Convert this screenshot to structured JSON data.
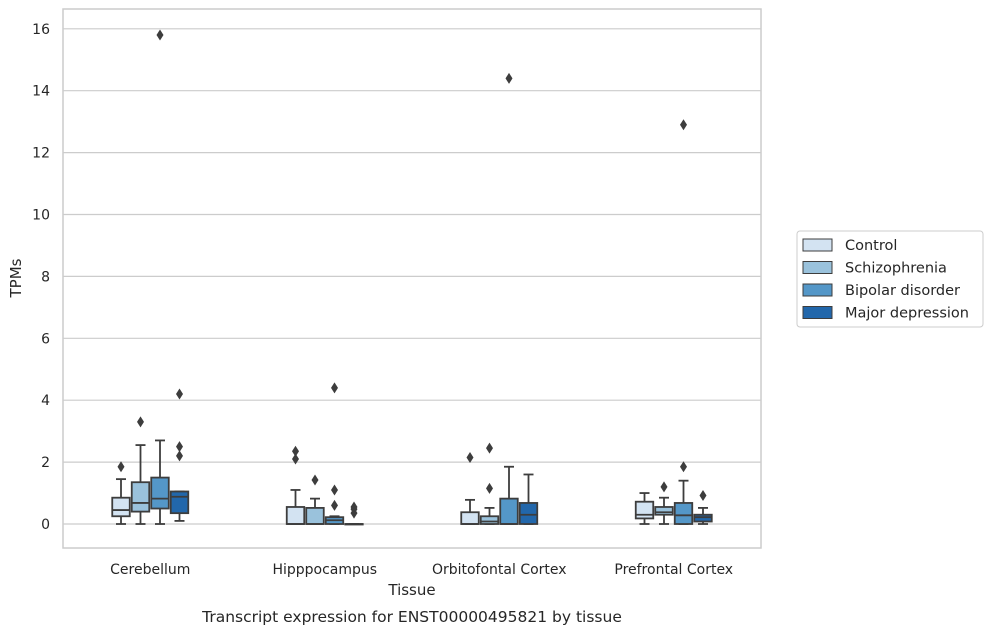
{
  "chart_data": {
    "type": "boxplot",
    "title": "",
    "caption": "Transcript expression for ENST00000495821 by tissue",
    "xlabel": "Tissue",
    "ylabel": "TPMs",
    "ylim": [
      -0.75,
      16.6
    ],
    "yticks": [
      0,
      2,
      4,
      6,
      8,
      10,
      12,
      14,
      16
    ],
    "grid": "horizontal",
    "legend_position": "right",
    "categories": [
      "Cerebellum",
      "Hipppocampus",
      "Orbitofontal Cortex",
      "Prefrontal Cortex"
    ],
    "series": [
      {
        "name": "Control",
        "color": "#d3e3f2",
        "boxes": [
          {
            "whislo": 0,
            "q1": 0.25,
            "med": 0.45,
            "q3": 0.85,
            "whishi": 1.45,
            "fliers": [
              1.85
            ]
          },
          {
            "whislo": 0,
            "q1": 0,
            "med": 0,
            "q3": 0.55,
            "whishi": 1.1,
            "fliers": [
              2.1,
              2.35
            ]
          },
          {
            "whislo": 0,
            "q1": 0,
            "med": 0,
            "q3": 0.38,
            "whishi": 0.78,
            "fliers": [
              2.15
            ]
          },
          {
            "whislo": 0,
            "q1": 0.18,
            "med": 0.3,
            "q3": 0.72,
            "whishi": 1.0,
            "fliers": []
          }
        ]
      },
      {
        "name": "Schizophrenia",
        "color": "#9ac2dc",
        "boxes": [
          {
            "whislo": 0,
            "q1": 0.4,
            "med": 0.68,
            "q3": 1.35,
            "whishi": 2.55,
            "fliers": [
              3.3
            ]
          },
          {
            "whislo": 0,
            "q1": 0,
            "med": 0,
            "q3": 0.52,
            "whishi": 0.82,
            "fliers": [
              1.42
            ]
          },
          {
            "whislo": 0,
            "q1": 0,
            "med": 0.08,
            "q3": 0.25,
            "whishi": 0.52,
            "fliers": [
              1.15,
              2.45
            ]
          },
          {
            "whislo": 0,
            "q1": 0.3,
            "med": 0.38,
            "q3": 0.55,
            "whishi": 0.85,
            "fliers": [
              1.2
            ]
          }
        ]
      },
      {
        "name": "Bipolar disorder",
        "color": "#5497c8",
        "boxes": [
          {
            "whislo": 0,
            "q1": 0.5,
            "med": 0.82,
            "q3": 1.5,
            "whishi": 2.7,
            "fliers": [
              15.8
            ]
          },
          {
            "whislo": 0,
            "q1": 0,
            "med": 0.12,
            "q3": 0.22,
            "whishi": 0.25,
            "fliers": [
              0.6,
              1.1,
              4.4
            ]
          },
          {
            "whislo": 0,
            "q1": 0,
            "med": 0,
            "q3": 0.82,
            "whishi": 1.85,
            "fliers": [
              14.4
            ]
          },
          {
            "whislo": 0,
            "q1": 0,
            "med": 0.28,
            "q3": 0.68,
            "whishi": 1.4,
            "fliers": [
              1.85,
              12.9
            ]
          }
        ]
      },
      {
        "name": "Major depression",
        "color": "#2267ab",
        "boxes": [
          {
            "whislo": 0.1,
            "q1": 0.35,
            "med": 0.88,
            "q3": 1.05,
            "whishi": 1.05,
            "fliers": [
              2.2,
              2.5,
              4.2
            ]
          },
          {
            "whislo": 0,
            "q1": 0,
            "med": 0,
            "q3": 0,
            "whishi": 0,
            "fliers": [
              0.35,
              0.48,
              0.55
            ]
          },
          {
            "whislo": 0,
            "q1": 0,
            "med": 0.3,
            "q3": 0.68,
            "whishi": 1.6,
            "fliers": []
          },
          {
            "whislo": 0,
            "q1": 0.08,
            "med": 0.22,
            "q3": 0.3,
            "whishi": 0.52,
            "fliers": [
              0.92
            ]
          }
        ]
      }
    ]
  }
}
